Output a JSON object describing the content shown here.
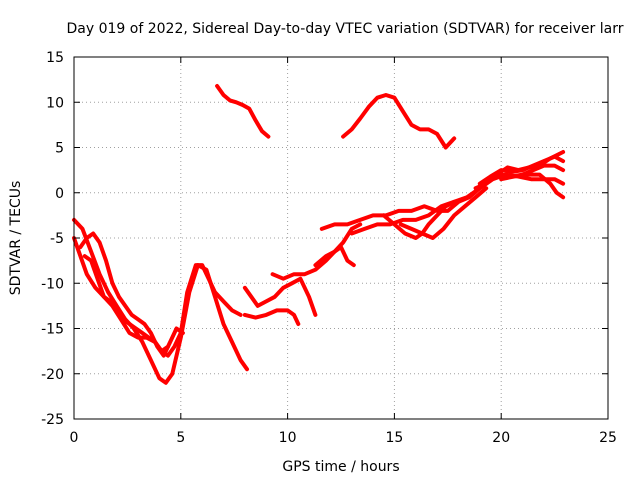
{
  "chart_data": {
    "type": "scatter",
    "title": "Day 019 of 2022, Sidereal Day-to-day VTEC variation (SDTVAR) for receiver larr",
    "xlabel": "GPS time / hours",
    "ylabel": "SDTVAR / TECUs",
    "xlim": [
      0,
      25
    ],
    "ylim": [
      -25,
      15
    ],
    "xticks": [
      0,
      5,
      10,
      15,
      20,
      25
    ],
    "yticks": [
      -25,
      -20,
      -15,
      -10,
      -5,
      0,
      5,
      10,
      15
    ],
    "xtick_labels": [
      "0",
      "5",
      "10",
      "15",
      "20",
      "25"
    ],
    "ytick_labels": [
      "-25",
      "-20",
      "-15",
      "-10",
      "-5",
      "0",
      "5",
      "10",
      "15"
    ],
    "grid": true,
    "legend": "none",
    "color": "#ff0000",
    "marker": "plus",
    "series": [
      {
        "x": [
          0.0,
          0.4,
          0.8,
          1.2,
          1.6,
          2.0,
          2.4,
          2.8,
          3.2,
          3.6,
          4.0,
          4.3,
          4.6,
          5.0,
          5.4,
          5.8,
          6.2,
          6.6,
          7.0,
          7.4,
          7.8,
          8.1
        ],
        "y": [
          -3.0,
          -4.0,
          -6.5,
          -9.0,
          -11.0,
          -12.5,
          -14.0,
          -15.0,
          -16.5,
          -18.5,
          -20.5,
          -21.0,
          -20.0,
          -16.0,
          -11.0,
          -8.0,
          -8.5,
          -11.5,
          -14.5,
          -16.5,
          -18.5,
          -19.5
        ]
      },
      {
        "x": [
          0.0,
          0.3,
          0.6,
          1.0,
          1.4,
          1.8,
          2.2,
          2.6,
          3.0,
          3.4,
          3.8,
          4.1,
          4.4,
          4.7,
          5.0,
          5.3,
          5.7,
          6.0,
          6.3,
          6.6,
          7.0,
          7.4,
          7.8
        ],
        "y": [
          -5.0,
          -7.0,
          -9.0,
          -10.5,
          -11.5,
          -12.5,
          -14.0,
          -15.5,
          -16.0,
          -16.0,
          -16.5,
          -17.5,
          -18.0,
          -17.0,
          -15.5,
          -11.0,
          -8.0,
          -8.0,
          -9.5,
          -11.0,
          -12.0,
          -13.0,
          -13.5
        ]
      },
      {
        "x": [
          0.3,
          0.6,
          0.9,
          1.2,
          1.5,
          1.8,
          2.1,
          2.4,
          2.7,
          3.0,
          3.3,
          3.6,
          3.9,
          4.2,
          4.5,
          4.8,
          5.1
        ],
        "y": [
          -6.0,
          -5.0,
          -4.5,
          -5.5,
          -7.5,
          -10.0,
          -11.5,
          -12.5,
          -13.5,
          -14.0,
          -14.5,
          -15.5,
          -17.0,
          -18.0,
          -16.5,
          -15.0,
          -15.5
        ]
      },
      {
        "x": [
          0.5,
          0.8,
          1.1,
          1.4,
          1.7,
          2.0,
          2.3,
          2.6,
          2.9,
          3.2,
          3.5,
          3.8,
          4.1,
          4.4
        ],
        "y": [
          -7.0,
          -7.5,
          -9.5,
          -11.5,
          -12.0,
          -13.0,
          -14.0,
          -14.5,
          -15.0,
          -15.5,
          -16.0,
          -16.5,
          -17.5,
          -17.0
        ]
      },
      {
        "x": [
          6.7,
          7.0,
          7.3,
          7.6,
          7.9,
          8.2,
          8.5,
          8.8,
          9.1
        ],
        "y": [
          11.8,
          10.8,
          10.2,
          10.0,
          9.7,
          9.3,
          8.0,
          6.8,
          6.2
        ]
      },
      {
        "x": [
          8.0,
          8.3,
          8.6,
          9.0,
          9.4,
          9.8,
          10.2,
          10.6,
          11.0,
          11.3
        ],
        "y": [
          -10.5,
          -11.5,
          -12.5,
          -12.0,
          -11.5,
          -10.5,
          -10.0,
          -9.5,
          -11.5,
          -13.5
        ]
      },
      {
        "x": [
          8.0,
          8.5,
          9.0,
          9.5,
          10.0,
          10.3,
          10.5
        ],
        "y": [
          -13.5,
          -13.8,
          -13.5,
          -13.0,
          -13.0,
          -13.5,
          -14.5
        ]
      },
      {
        "x": [
          9.3,
          9.8,
          10.3,
          10.8,
          11.3,
          11.8,
          12.2,
          12.6,
          13.0,
          13.4
        ],
        "y": [
          -9.0,
          -9.5,
          -9.0,
          -9.0,
          -8.5,
          -7.5,
          -6.5,
          -5.5,
          -4.0,
          -3.5
        ]
      },
      {
        "x": [
          11.3,
          11.8,
          12.2,
          12.5,
          12.8,
          13.1
        ],
        "y": [
          -8.0,
          -7.0,
          -6.5,
          -6.0,
          -7.5,
          -8.0
        ]
      },
      {
        "x": [
          11.6,
          12.2,
          12.8,
          13.4,
          14.0,
          14.6,
          15.2,
          15.8,
          16.4,
          17.0,
          17.5,
          18.0,
          18.5,
          19.0,
          19.5,
          20.0,
          20.5,
          21.0,
          21.5,
          22.0,
          22.5,
          22.9
        ],
        "y": [
          -4.0,
          -3.5,
          -3.5,
          -3.0,
          -2.5,
          -2.5,
          -2.0,
          -2.0,
          -1.5,
          -2.0,
          -2.0,
          -1.0,
          -0.5,
          0.5,
          1.5,
          2.0,
          1.8,
          2.0,
          2.5,
          3.0,
          3.0,
          2.5
        ]
      },
      {
        "x": [
          12.6,
          13.0,
          13.4,
          13.8,
          14.2,
          14.6,
          15.0,
          15.4,
          15.8,
          16.2,
          16.6,
          17.0,
          17.4,
          17.8
        ],
        "y": [
          6.2,
          7.0,
          8.2,
          9.5,
          10.5,
          10.8,
          10.5,
          9.0,
          7.5,
          7.0,
          7.0,
          6.5,
          5.0,
          6.0
        ]
      },
      {
        "x": [
          13.0,
          13.6,
          14.2,
          14.8,
          15.4,
          16.0,
          16.6,
          17.2,
          17.8,
          18.4,
          19.0,
          19.6,
          20.2,
          20.8,
          21.4,
          22.0,
          22.5,
          22.9
        ],
        "y": [
          -4.5,
          -4.0,
          -3.5,
          -3.5,
          -3.0,
          -3.0,
          -2.5,
          -1.5,
          -1.0,
          -0.5,
          0.5,
          1.5,
          2.0,
          1.8,
          1.5,
          1.5,
          1.5,
          1.0
        ]
      },
      {
        "x": [
          14.5,
          15.0,
          15.5,
          16.0,
          16.3,
          16.6,
          17.0,
          17.4,
          17.8
        ],
        "y": [
          -2.5,
          -3.5,
          -4.5,
          -5.0,
          -4.5,
          -3.5,
          -2.5,
          -1.5,
          -1.0
        ]
      },
      {
        "x": [
          15.3,
          15.8,
          16.3,
          16.8,
          17.3,
          17.8,
          18.3,
          18.8,
          19.3
        ],
        "y": [
          -3.5,
          -4.0,
          -4.5,
          -5.0,
          -4.0,
          -2.5,
          -1.5,
          -0.5,
          0.5
        ]
      },
      {
        "x": [
          18.8,
          19.3,
          19.8,
          20.3,
          20.8,
          21.3,
          21.8,
          22.3,
          22.9
        ],
        "y": [
          0.5,
          1.0,
          2.0,
          2.8,
          2.5,
          2.8,
          3.0,
          3.8,
          4.5
        ]
      },
      {
        "x": [
          19.0,
          19.5,
          20.0,
          20.5,
          21.0,
          21.5,
          22.0,
          22.5,
          22.9
        ],
        "y": [
          1.0,
          1.8,
          2.5,
          2.3,
          2.5,
          3.0,
          3.5,
          4.0,
          3.5
        ]
      },
      {
        "x": [
          20.0,
          20.6,
          21.2,
          21.8,
          22.3,
          22.6,
          22.9
        ],
        "y": [
          1.5,
          1.8,
          2.0,
          2.0,
          1.0,
          0.0,
          -0.5
        ]
      }
    ]
  }
}
